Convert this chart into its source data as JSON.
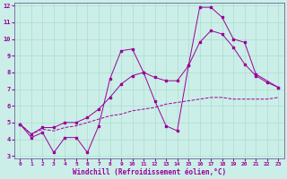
{
  "xlabel": "Windchill (Refroidissement éolien,°C)",
  "bg_color": "#cceee8",
  "grid_color": "#aaddcc",
  "line_color": "#990099",
  "x": [
    0,
    1,
    2,
    3,
    4,
    5,
    6,
    7,
    8,
    9,
    10,
    11,
    12,
    13,
    14,
    15,
    16,
    17,
    18,
    19,
    20,
    21,
    22,
    23
  ],
  "line1_x": [
    0,
    1,
    2,
    3,
    4,
    5,
    6,
    7,
    8,
    9,
    10,
    11,
    12,
    13,
    14,
    15,
    16,
    17,
    18,
    19,
    20,
    21,
    23
  ],
  "line1_y": [
    4.9,
    4.1,
    4.4,
    3.2,
    4.1,
    4.1,
    3.2,
    4.8,
    7.6,
    9.3,
    9.4,
    8.0,
    6.3,
    4.8,
    4.5,
    8.4,
    11.9,
    11.9,
    11.3,
    10.0,
    9.8,
    7.9,
    7.1
  ],
  "line2_x": [
    0,
    1,
    2,
    3,
    4,
    5,
    6,
    7,
    8,
    9,
    10,
    11,
    12,
    13,
    14,
    15,
    16,
    17,
    18,
    19,
    20,
    21,
    22,
    23
  ],
  "line2_y": [
    4.9,
    4.3,
    4.7,
    4.7,
    5.0,
    5.0,
    5.3,
    5.8,
    6.5,
    7.3,
    7.8,
    8.0,
    7.7,
    7.5,
    7.5,
    8.4,
    9.8,
    10.5,
    10.3,
    9.5,
    8.5,
    7.8,
    7.4,
    7.1
  ],
  "line3_x": [
    0,
    1,
    2,
    3,
    4,
    5,
    6,
    7,
    8,
    9,
    10,
    11,
    12,
    13,
    14,
    15,
    16,
    17,
    18,
    19,
    20,
    21,
    22,
    23
  ],
  "line3_y": [
    4.9,
    4.3,
    4.6,
    4.5,
    4.7,
    4.8,
    5.0,
    5.2,
    5.4,
    5.5,
    5.7,
    5.8,
    5.9,
    6.1,
    6.2,
    6.3,
    6.4,
    6.5,
    6.5,
    6.4,
    6.4,
    6.4,
    6.4,
    6.5
  ],
  "ylim": [
    3,
    12
  ],
  "xlim": [
    -0.5,
    23.5
  ],
  "yticks": [
    3,
    4,
    5,
    6,
    7,
    8,
    9,
    10,
    11,
    12
  ],
  "xticks": [
    0,
    1,
    2,
    3,
    4,
    5,
    6,
    7,
    8,
    9,
    10,
    11,
    12,
    13,
    14,
    15,
    16,
    17,
    18,
    19,
    20,
    21,
    22,
    23
  ]
}
